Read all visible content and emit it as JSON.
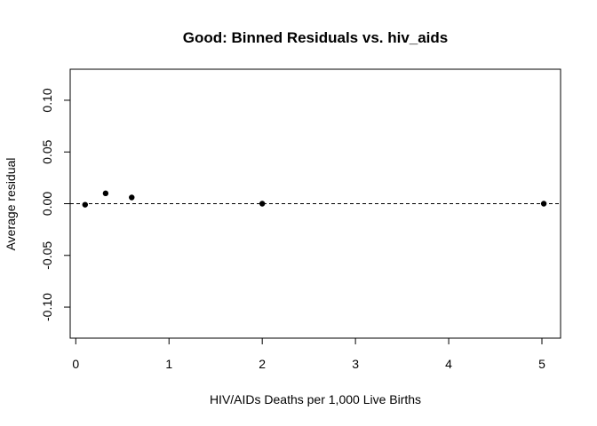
{
  "chart_data": {
    "type": "scatter",
    "title": "Good: Binned Residuals vs. hiv_aids",
    "xlabel": "HIV/AIDs Deaths per 1,000 Live Births",
    "ylabel": "Average residual",
    "xlim": [
      -0.06,
      5.2
    ],
    "ylim": [
      -0.13,
      0.13
    ],
    "x_ticks": [
      0,
      1,
      2,
      3,
      4,
      5
    ],
    "x_tick_labels": [
      "0",
      "1",
      "2",
      "3",
      "4",
      "5"
    ],
    "y_ticks": [
      -0.1,
      -0.05,
      0.0,
      0.05,
      0.1
    ],
    "y_tick_labels": [
      "-0.10",
      "-0.05",
      "0.00",
      "0.05",
      "0.10"
    ],
    "reference_line": {
      "y": 0,
      "style": "dashed",
      "color": "#000000"
    },
    "grid": false,
    "points": [
      {
        "x": 0.1,
        "y": -0.001
      },
      {
        "x": 0.32,
        "y": 0.01
      },
      {
        "x": 0.6,
        "y": 0.006
      },
      {
        "x": 2.0,
        "y": 0.0
      },
      {
        "x": 5.02,
        "y": 0.0
      }
    ],
    "colors": {
      "points": "#000000",
      "axes": "#000000",
      "background": "#ffffff"
    }
  }
}
